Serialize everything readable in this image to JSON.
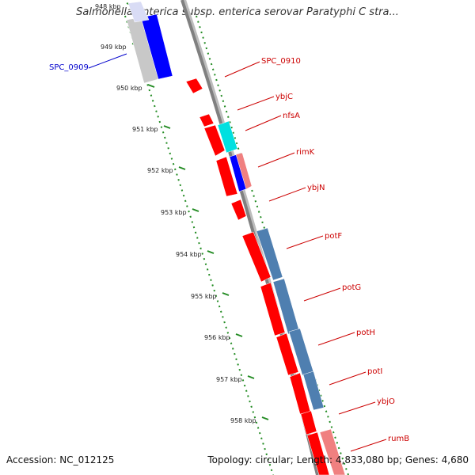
{
  "title": "Salmonella enterica subsp. enterica serovar Paratyphi C stra...",
  "footer": {
    "accession": "Accession: NC_012125",
    "topology": "Topology: circular; Length: 4,833,080 bp; Genes: 4,680"
  },
  "ticks": [
    "948 kbp",
    "949 kbp",
    "950 kbp",
    "951 kbp",
    "952 kbp",
    "953 kbp",
    "954 kbp",
    "955 kbp",
    "956 kbp",
    "957 kbp",
    "958 kbp"
  ],
  "genes": [
    {
      "label": "SPC_0909",
      "color": "#0000cc"
    },
    {
      "label": "SPC_0910",
      "color": "#cc0000"
    },
    {
      "label": "ybjC",
      "color": "#cc0000"
    },
    {
      "label": "nfsA",
      "color": "#cc0000"
    },
    {
      "label": "rimK",
      "color": "#cc0000"
    },
    {
      "label": "ybjN",
      "color": "#cc0000"
    },
    {
      "label": "potF",
      "color": "#cc0000"
    },
    {
      "label": "potG",
      "color": "#cc0000"
    },
    {
      "label": "potH",
      "color": "#cc0000"
    },
    {
      "label": "potI",
      "color": "#cc0000"
    },
    {
      "label": "ybjO",
      "color": "#cc0000"
    },
    {
      "label": "rumB",
      "color": "#cc0000"
    }
  ],
  "colors": {
    "forward_gene": "#ff0000",
    "reverse_gene": "#0000ff",
    "cog_cyan": "#00e0e0",
    "cog_steelblue": "#4f7fb0",
    "cog_pink": "#f08080",
    "backbone": "#888888",
    "tick": "#228b22"
  }
}
